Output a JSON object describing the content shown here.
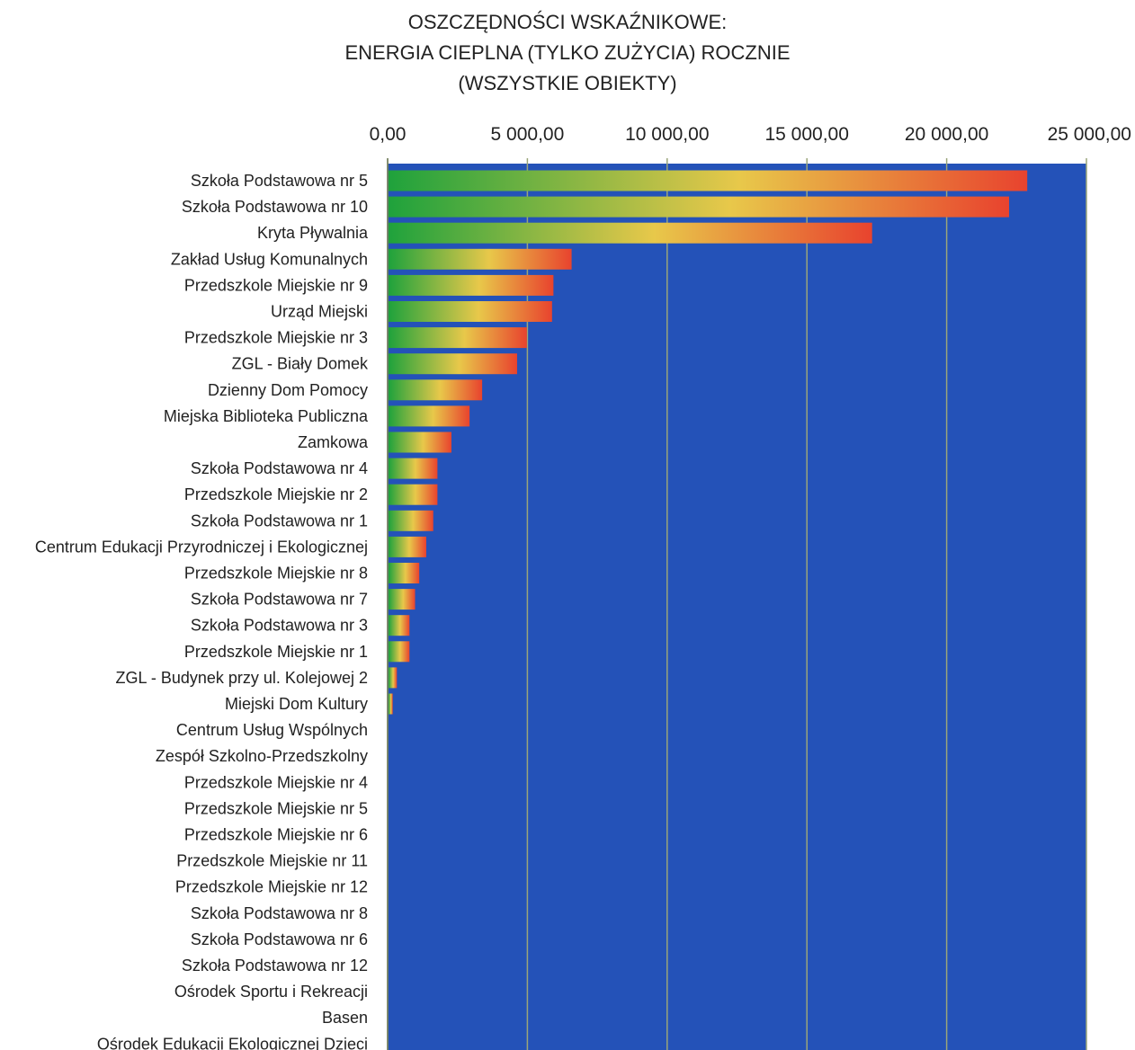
{
  "chart_data": {
    "type": "bar",
    "orientation": "horizontal",
    "title": [
      "OSZCZĘDNOŚCI WSKAŹNIKOWE:",
      "ENERGIA CIEPLNA (TYLKO ZUŻYCIA) ROCZNIE",
      "(WSZYSTKIE OBIEKTY)"
    ],
    "xlim": [
      0,
      25000
    ],
    "x_ticks": [
      "0,00",
      "5 000,00",
      "10 000,00",
      "15 000,00",
      "20 000,00",
      "25 000,00"
    ],
    "x_axis_position": "top",
    "grid": true,
    "plot_background": "#2452b8",
    "bar_gradient": [
      "#1fa23c",
      "#e8c84a",
      "#e8432e"
    ],
    "categories": [
      "Szkoła Podstawowa nr 5",
      "Szkoła Podstawowa nr 10",
      "Kryta Pływalnia",
      "Zakład Usług Komunalnych",
      "Przedszkole Miejskie nr 9",
      "Urząd Miejski",
      "Przedszkole Miejskie nr 3",
      "ZGL - Biały Domek",
      "Dzienny Dom Pomocy",
      "Miejska Biblioteka Publiczna",
      "Zamkowa",
      "Szkoła Podstawowa nr 4",
      "Przedszkole Miejskie nr 2",
      "Szkoła Podstawowa nr 1",
      "Centrum Edukacji Przyrodniczej i Ekologicznej",
      "Przedszkole Miejskie nr 8",
      "Szkoła Podstawowa nr 7",
      "Szkoła Podstawowa nr 3",
      "Przedszkole Miejskie nr 1",
      "ZGL - Budynek przy ul. Kolejowej 2",
      "Miejski Dom Kultury",
      "Centrum Usług Wspólnych",
      "Zespół Szkolno-Przedszkolny",
      "Przedszkole Miejskie nr 4",
      "Przedszkole Miejskie nr 5",
      "Przedszkole Miejskie nr 6",
      "Przedszkole Miejskie nr 11",
      "Przedszkole Miejskie nr 12",
      "Szkoła Podstawowa nr 8",
      "Szkoła Podstawowa nr 6",
      "Szkoła Podstawowa nr 12",
      "Ośrodek Sportu i Rekreacji",
      "Basen",
      "Ośrodek Edukacji Ekologicznej Dzieci"
    ],
    "values": [
      22850,
      22200,
      17300,
      6550,
      5900,
      5850,
      4950,
      4600,
      3350,
      2900,
      2250,
      1750,
      1750,
      1600,
      1350,
      1100,
      950,
      750,
      750,
      300,
      150,
      0,
      0,
      0,
      0,
      0,
      0,
      0,
      0,
      0,
      0,
      0,
      0,
      0
    ]
  }
}
